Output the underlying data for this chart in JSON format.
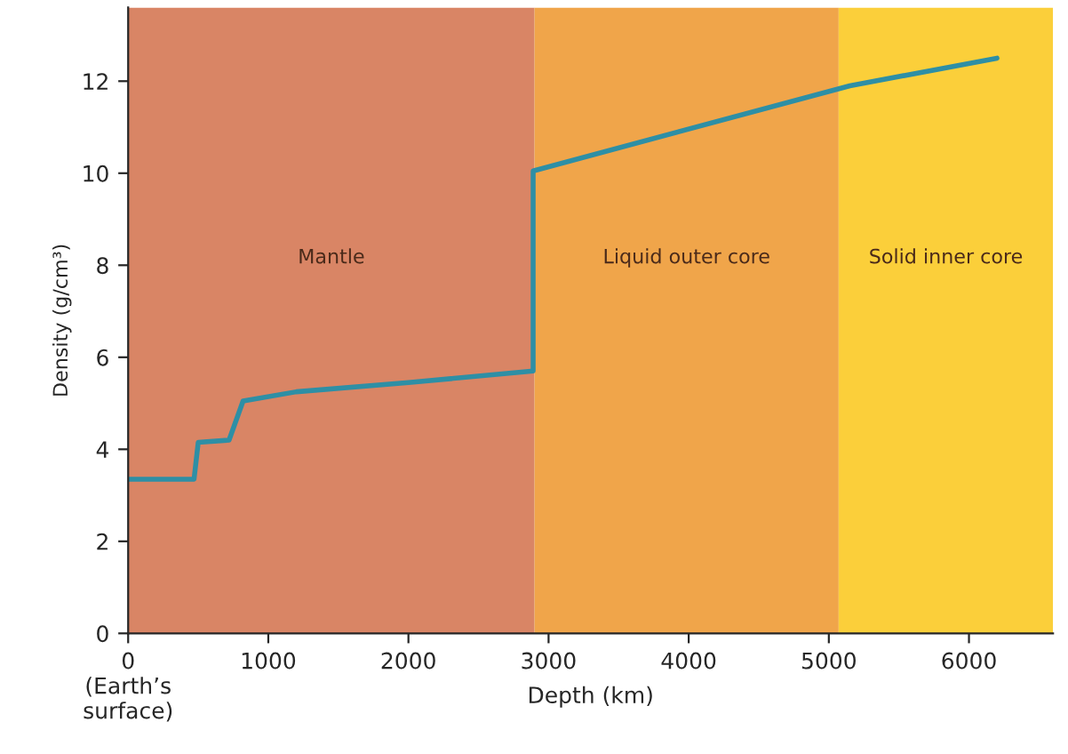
{
  "chart_data": {
    "type": "line",
    "xlabel": "Depth (km)",
    "ylabel": "Density (g/cm³)",
    "x": [
      0,
      470,
      500,
      720,
      820,
      1200,
      2000,
      2890,
      2890,
      5150,
      6200
    ],
    "series": [
      {
        "color": "#2e8fa5",
        "values": [
          3.35,
          3.35,
          4.15,
          4.2,
          5.05,
          5.25,
          5.45,
          5.7,
          10.05,
          11.9,
          12.5
        ]
      }
    ],
    "xlim": [
      0,
      6600
    ],
    "ylim": [
      0,
      13.6
    ],
    "xticks": [
      {
        "value": 0,
        "label": "0\n(Earth’s\nsurface)"
      },
      1000,
      2000,
      3000,
      4000,
      5000,
      6000
    ],
    "yticks": [
      0,
      2,
      4,
      6,
      8,
      10,
      12
    ],
    "bands": [
      {
        "axis": "x",
        "from": 0,
        "to": 2900,
        "label": "Mantle",
        "color": "#d98565"
      },
      {
        "axis": "x",
        "from": 2900,
        "to": 5070,
        "label": "Liquid outer core",
        "color": "#f0a54a"
      },
      {
        "axis": "x",
        "from": 5070,
        "to": 6600,
        "label": "Solid inner core",
        "color": "#fbcf3a"
      }
    ],
    "grid": false,
    "legend": false,
    "marker": "none",
    "line_style": "solid"
  }
}
